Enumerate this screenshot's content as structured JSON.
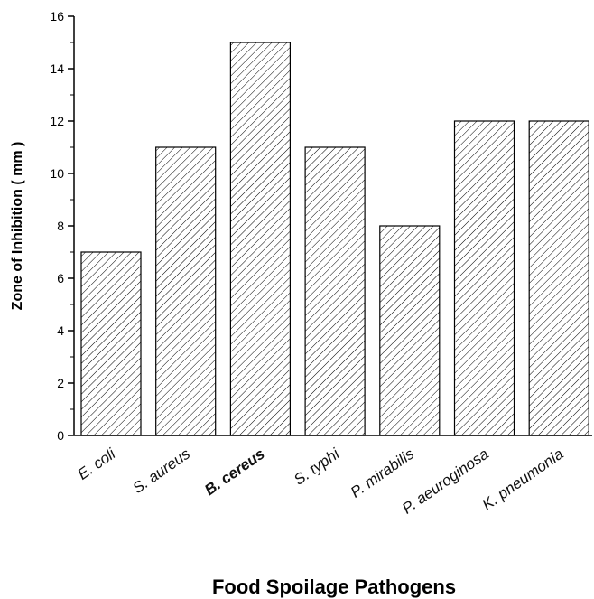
{
  "chart_data": {
    "type": "bar",
    "title": "",
    "xlabel": "Food Spoilage Pathogens",
    "ylabel": "Zone of Inhibition ( mm )",
    "categories": [
      "E. coli",
      "S. aureus",
      "B. cereus",
      "S. typhi",
      "P. mirabilis",
      "P. aeuroginosa",
      "K. pneumonia"
    ],
    "values": [
      7,
      11,
      15,
      11,
      8,
      12,
      12
    ],
    "bold_categories": [
      "B. cereus"
    ],
    "ylim": [
      0,
      16
    ],
    "yticks": [
      "0",
      "2",
      "4",
      "6",
      "8",
      "10",
      "12",
      "14",
      "16"
    ],
    "ytick_values": [
      0,
      2,
      4,
      6,
      8,
      10,
      12,
      14,
      16
    ],
    "bar_fill": "hatched",
    "bar_color": "#000000",
    "grid": false,
    "legend": "none"
  }
}
